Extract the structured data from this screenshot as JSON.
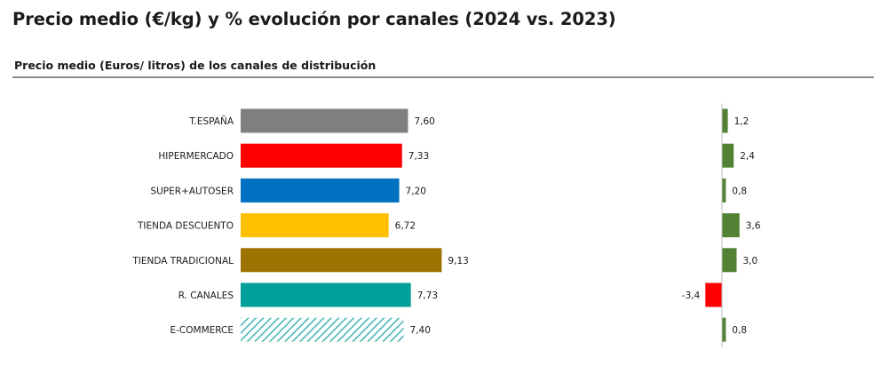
{
  "header": {
    "title": "Precio medio (€/kg) y % evolución por canales (2024 vs. 2023)",
    "subtitle": "Precio medio (Euros/ litros) de los canales de distribución"
  },
  "chart_data": [
    {
      "type": "bar",
      "orientation": "horizontal",
      "title": "Precio medio (Euros/ litros) de los canales de distribución",
      "categories": [
        "T.ESPAÑA",
        "HIPERMERCADO",
        "SUPER+AUTOSER",
        "TIENDA DESCUENTO",
        "TIENDA TRADICIONAL",
        "R. CANALES",
        "E-COMMERCE"
      ],
      "values": [
        7.6,
        7.33,
        7.2,
        6.72,
        9.13,
        7.73,
        7.4
      ],
      "labels": [
        "7,60",
        "7,33",
        "7,20",
        "6,72",
        "9,13",
        "7,73",
        "7,40"
      ],
      "colors": [
        "#7f7f7f",
        "#ff0000",
        "#0070c0",
        "#ffc000",
        "#9c7300",
        "#00a09a",
        "#4bb8b4"
      ],
      "patterns": [
        "solid",
        "solid",
        "solid",
        "solid",
        "solid",
        "solid",
        "hatched"
      ],
      "xlim": [
        0,
        9.13
      ],
      "grid": false
    },
    {
      "type": "bar",
      "orientation": "horizontal",
      "categories": [
        "T.ESPAÑA",
        "HIPERMERCADO",
        "SUPER+AUTOSER",
        "TIENDA DESCUENTO",
        "TIENDA TRADICIONAL",
        "R. CANALES",
        "E-COMMERCE"
      ],
      "values": [
        1.2,
        2.4,
        0.8,
        3.6,
        3.0,
        -3.4,
        0.8
      ],
      "labels": [
        "1,2",
        "2,4",
        "0,8",
        "3,6",
        "3,0",
        "-3,4",
        "0,8"
      ],
      "positive_color": "#548235",
      "negative_color": "#ff0000",
      "grid": false
    }
  ]
}
